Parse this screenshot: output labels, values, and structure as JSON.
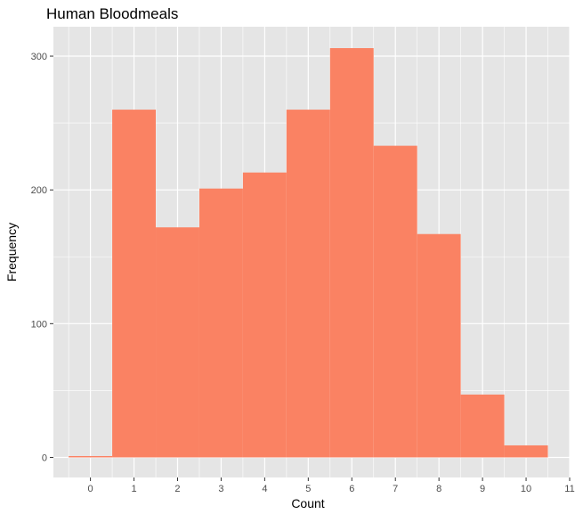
{
  "chart_data": {
    "type": "bar",
    "title": "Human Bloodmeals",
    "xlabel": "Count",
    "ylabel": "Frequency",
    "categories": [
      "0",
      "1",
      "2",
      "3",
      "4",
      "5",
      "6",
      "7",
      "8",
      "9",
      "10"
    ],
    "values": [
      1,
      260,
      172,
      201,
      213,
      260,
      306,
      233,
      167,
      47,
      9
    ],
    "xlim": [
      -0.85,
      11.0
    ],
    "ylim": [
      -15,
      322
    ],
    "x_ticks": [
      0,
      1,
      2,
      3,
      4,
      5,
      6,
      7,
      8,
      9,
      10,
      11
    ],
    "y_ticks": [
      0,
      100,
      200,
      300
    ],
    "bar_color": "#FA8263",
    "panel_color": "#E5E5E5",
    "grid_color": "#FFFFFF",
    "grid": true
  }
}
